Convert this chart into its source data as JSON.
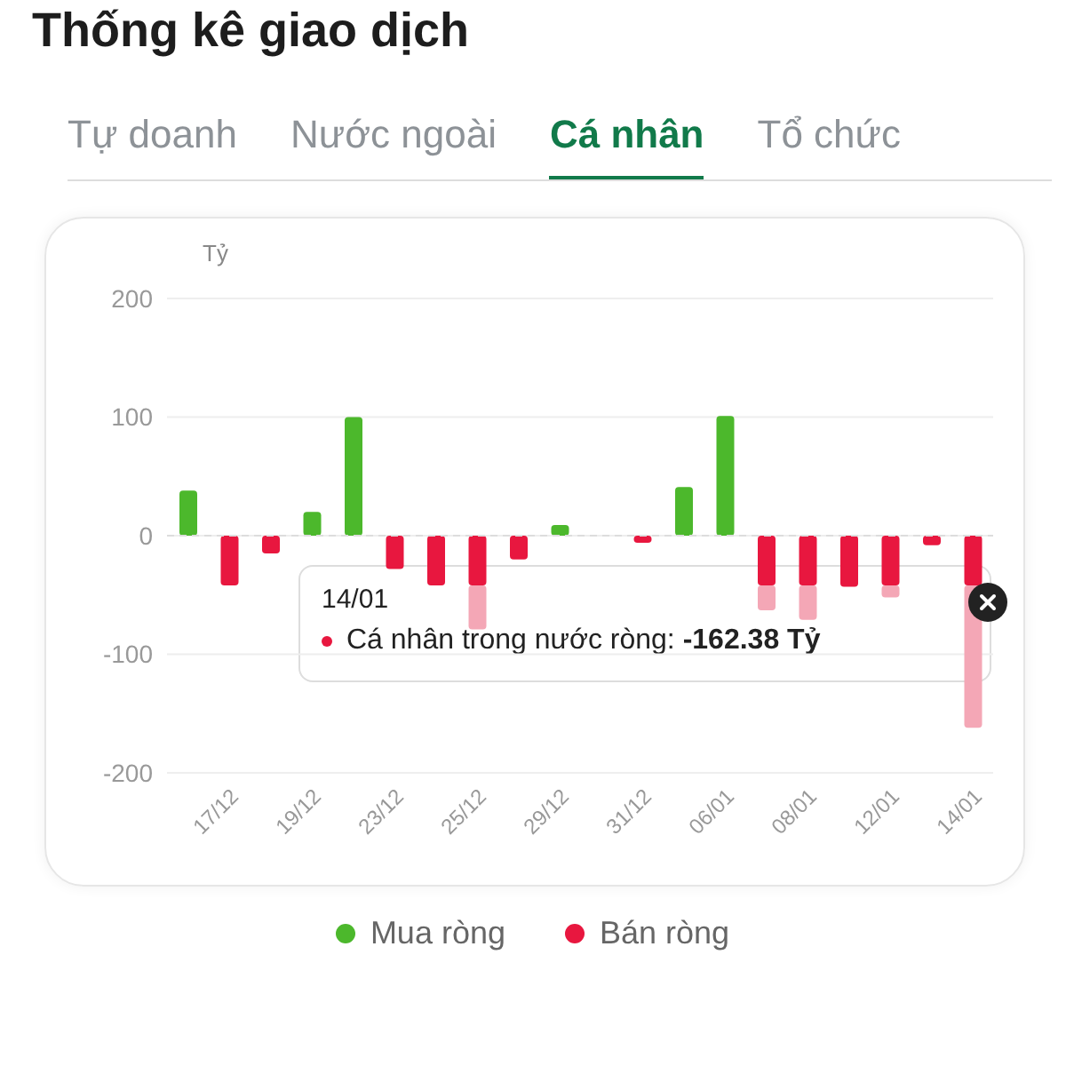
{
  "chart_data": {
    "type": "bar",
    "title": "Thống kê giao dịch",
    "ylabel": "Tỷ",
    "annotations": [
      "Tự doanh",
      "Nước ngoài",
      "Cá nhân",
      "Tổ chức",
      "14/01",
      "Cá nhân trong nước ròng: -162.38 Tỷ"
    ],
    "ref_lines": [
      {
        "axis": "y",
        "value": 0,
        "color": "#dddddd",
        "line_style": "dashed"
      }
    ],
    "categories": [
      null,
      "17/12",
      null,
      "19/12",
      null,
      "23/12",
      null,
      "25/12",
      null,
      "29/12",
      null,
      "31/12",
      null,
      "06/01",
      null,
      "08/01",
      null,
      "12/01",
      null,
      "14/01"
    ],
    "series": [
      {
        "name": "Mua ròng",
        "color": "#4cb82c",
        "values": [
          38,
          null,
          null,
          20,
          100,
          null,
          null,
          null,
          null,
          9,
          null,
          null,
          41,
          101,
          null,
          null,
          null,
          null,
          null,
          null
        ]
      },
      {
        "name": "Bán ròng",
        "color": "#e8173f",
        "values": [
          null,
          -42,
          -15,
          null,
          null,
          -28,
          -42,
          -42,
          -20,
          null,
          null,
          -6,
          null,
          null,
          -42,
          -42,
          -43,
          -42,
          -8,
          -42
        ]
      },
      {
        "color": "#f4a7b6",
        "values": [
          null,
          null,
          null,
          null,
          null,
          null,
          null,
          -37,
          null,
          null,
          null,
          null,
          null,
          null,
          -21,
          -29,
          null,
          -10,
          null,
          -120
        ]
      }
    ],
    "stacked": true,
    "ylim": [
      -200,
      200
    ],
    "yticks": [
      -200,
      -100,
      0,
      100,
      200
    ],
    "grid": "y",
    "legend": "bottom"
  }
}
